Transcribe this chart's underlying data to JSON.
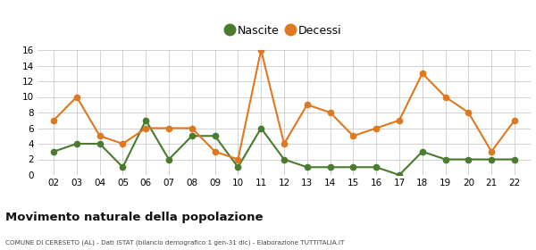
{
  "years": [
    2,
    3,
    4,
    5,
    6,
    7,
    8,
    9,
    10,
    11,
    12,
    13,
    14,
    15,
    16,
    17,
    18,
    19,
    20,
    21,
    22
  ],
  "nascite": [
    3,
    4,
    4,
    1,
    7,
    2,
    5,
    5,
    1,
    6,
    2,
    1,
    1,
    1,
    1,
    0,
    3,
    2,
    2,
    2,
    2
  ],
  "decessi": [
    7,
    10,
    5,
    4,
    6,
    6,
    6,
    3,
    2,
    16,
    4,
    9,
    8,
    5,
    6,
    7,
    13,
    10,
    8,
    3,
    7
  ],
  "nascite_color": "#4a7c2f",
  "decessi_color": "#e07820",
  "background_color": "#ffffff",
  "grid_color": "#cccccc",
  "ylim": [
    0,
    16
  ],
  "yticks": [
    0,
    2,
    4,
    6,
    8,
    10,
    12,
    14,
    16
  ],
  "title": "Movimento naturale della popolazione",
  "subtitle": "COMUNE DI CERESETO (AL) - Dati ISTAT (bilancio demografico 1 gen-31 dic) - Elaborazione TUTTITALIA.IT",
  "legend_labels": [
    "Nascite",
    "Decessi"
  ],
  "marker_size": 4.5,
  "linewidth": 1.5
}
